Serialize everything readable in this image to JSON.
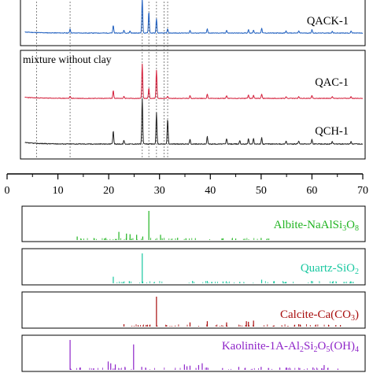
{
  "chart_data": [
    {
      "type": "line",
      "title": "",
      "xlabel": "",
      "ylabel": "",
      "xlim": [
        0,
        70
      ],
      "x_ticks": [
        "0",
        "10",
        "20",
        "30",
        "40",
        "50",
        "60",
        "70"
      ],
      "group_label": "mixture without clay",
      "reference_lines_x": [
        5.8,
        12.4,
        26.6,
        27.9,
        29.4,
        30.9,
        31.6
      ],
      "series": [
        {
          "name": "QACK-1",
          "color": "#1f5fbf",
          "baseline": 0.12,
          "peaks": [
            [
              12.4,
              0.12
            ],
            [
              20.9,
              0.22
            ],
            [
              23.0,
              0.08
            ],
            [
              24.2,
              0.06
            ],
            [
              26.6,
              1.0
            ],
            [
              27.9,
              0.62
            ],
            [
              29.4,
              0.42
            ],
            [
              31.6,
              0.12
            ],
            [
              36.0,
              0.08
            ],
            [
              39.4,
              0.12
            ],
            [
              43.2,
              0.08
            ],
            [
              47.5,
              0.1
            ],
            [
              48.5,
              0.09
            ],
            [
              50.1,
              0.14
            ],
            [
              54.9,
              0.06
            ],
            [
              57.4,
              0.06
            ],
            [
              60.0,
              0.1
            ],
            [
              64.0,
              0.05
            ],
            [
              67.7,
              0.06
            ]
          ]
        },
        {
          "name": "QAC-1",
          "color": "#d4203c",
          "baseline": 0.12,
          "peaks": [
            [
              12.4,
              0.06
            ],
            [
              20.9,
              0.22
            ],
            [
              23.0,
              0.06
            ],
            [
              26.6,
              1.0
            ],
            [
              27.9,
              0.3
            ],
            [
              29.4,
              0.82
            ],
            [
              31.6,
              0.06
            ],
            [
              36.0,
              0.08
            ],
            [
              39.4,
              0.12
            ],
            [
              43.2,
              0.08
            ],
            [
              47.5,
              0.1
            ],
            [
              48.5,
              0.09
            ],
            [
              50.1,
              0.12
            ],
            [
              54.9,
              0.05
            ],
            [
              57.4,
              0.05
            ],
            [
              60.0,
              0.09
            ],
            [
              64.0,
              0.05
            ],
            [
              67.7,
              0.05
            ]
          ]
        },
        {
          "name": "QCH-1",
          "color": "#222222",
          "baseline": 0.12,
          "peaks": [
            [
              20.9,
              0.28
            ],
            [
              23.0,
              0.08
            ],
            [
              26.6,
              1.0
            ],
            [
              29.4,
              0.68
            ],
            [
              31.6,
              0.55
            ],
            [
              36.0,
              0.1
            ],
            [
              39.4,
              0.16
            ],
            [
              43.2,
              0.12
            ],
            [
              45.8,
              0.08
            ],
            [
              47.5,
              0.12
            ],
            [
              48.5,
              0.12
            ],
            [
              50.1,
              0.14
            ],
            [
              54.9,
              0.07
            ],
            [
              57.4,
              0.07
            ],
            [
              60.0,
              0.1
            ],
            [
              64.0,
              0.06
            ],
            [
              67.7,
              0.06
            ]
          ]
        }
      ]
    },
    {
      "type": "bar",
      "title": "",
      "xlim": [
        0,
        70
      ],
      "reference_patterns": [
        {
          "name": "Albite-NaAlSi3O8",
          "label_main": "Albite-NaAlSi",
          "label_parts": [
            [
              "3",
              "O"
            ],
            [
              "8",
              ""
            ]
          ],
          "color": "#22b422",
          "peaks": [
            [
              13.8,
              0.12
            ],
            [
              22.0,
              0.28
            ],
            [
              23.5,
              0.22
            ],
            [
              24.2,
              0.2
            ],
            [
              25.5,
              0.18
            ],
            [
              26.7,
              0.12
            ],
            [
              27.9,
              1.0
            ],
            [
              30.2,
              0.18
            ],
            [
              35.2,
              0.06
            ],
            [
              42.5,
              0.06
            ],
            [
              45.0,
              0.05
            ],
            [
              50.0,
              0.07
            ],
            [
              51.5,
              0.05
            ]
          ]
        },
        {
          "name": "Quartz-SiO2",
          "label_main": "Quartz-SiO",
          "label_parts": [
            [
              "2",
              ""
            ]
          ],
          "color": "#18c8a0",
          "peaks": [
            [
              20.9,
              0.22
            ],
            [
              26.6,
              1.0
            ],
            [
              36.5,
              0.08
            ],
            [
              39.4,
              0.08
            ],
            [
              40.3,
              0.05
            ],
            [
              42.5,
              0.06
            ],
            [
              45.8,
              0.05
            ],
            [
              50.1,
              0.12
            ],
            [
              54.9,
              0.05
            ],
            [
              59.9,
              0.08
            ],
            [
              64.0,
              0.04
            ],
            [
              67.7,
              0.06
            ],
            [
              68.1,
              0.05
            ]
          ]
        },
        {
          "name": "Calcite-Ca(CO3)",
          "label_main": "Calcite-Ca(CO",
          "label_parts": [
            [
              "3",
              ")"
            ]
          ],
          "color": "#a80e0e",
          "peaks": [
            [
              23.0,
              0.08
            ],
            [
              29.4,
              1.0
            ],
            [
              31.4,
              0.05
            ],
            [
              36.0,
              0.14
            ],
            [
              39.4,
              0.18
            ],
            [
              43.2,
              0.14
            ],
            [
              47.1,
              0.18
            ],
            [
              47.5,
              0.16
            ],
            [
              48.5,
              0.2
            ],
            [
              56.6,
              0.06
            ],
            [
              57.4,
              0.08
            ],
            [
              60.7,
              0.05
            ],
            [
              64.7,
              0.05
            ],
            [
              65.6,
              0.05
            ]
          ]
        },
        {
          "name": "Kaolinite-1A-Al2Si2O5(OH)4",
          "label_main": "Kaolinite-1A-Al",
          "label_parts": [
            [
              "2",
              "Si"
            ],
            [
              "2",
              "O"
            ],
            [
              "5",
              "(OH)"
            ],
            [
              "4",
              ""
            ]
          ],
          "color": "#8e24c8",
          "peaks": [
            [
              12.4,
              1.0
            ],
            [
              19.9,
              0.28
            ],
            [
              20.4,
              0.22
            ],
            [
              21.3,
              0.18
            ],
            [
              23.2,
              0.1
            ],
            [
              24.9,
              0.85
            ],
            [
              26.5,
              0.1
            ],
            [
              34.9,
              0.18
            ],
            [
              35.4,
              0.12
            ],
            [
              36.0,
              0.14
            ],
            [
              37.7,
              0.16
            ],
            [
              38.4,
              0.22
            ],
            [
              39.3,
              0.08
            ],
            [
              42.4,
              0.06
            ],
            [
              45.6,
              0.1
            ],
            [
              46.8,
              0.06
            ],
            [
              50.0,
              0.1
            ],
            [
              55.0,
              0.08
            ],
            [
              57.6,
              0.06
            ],
            [
              60.2,
              0.08
            ],
            [
              62.4,
              0.16
            ],
            [
              63.1,
              0.06
            ],
            [
              65.1,
              0.04
            ]
          ]
        }
      ]
    }
  ]
}
